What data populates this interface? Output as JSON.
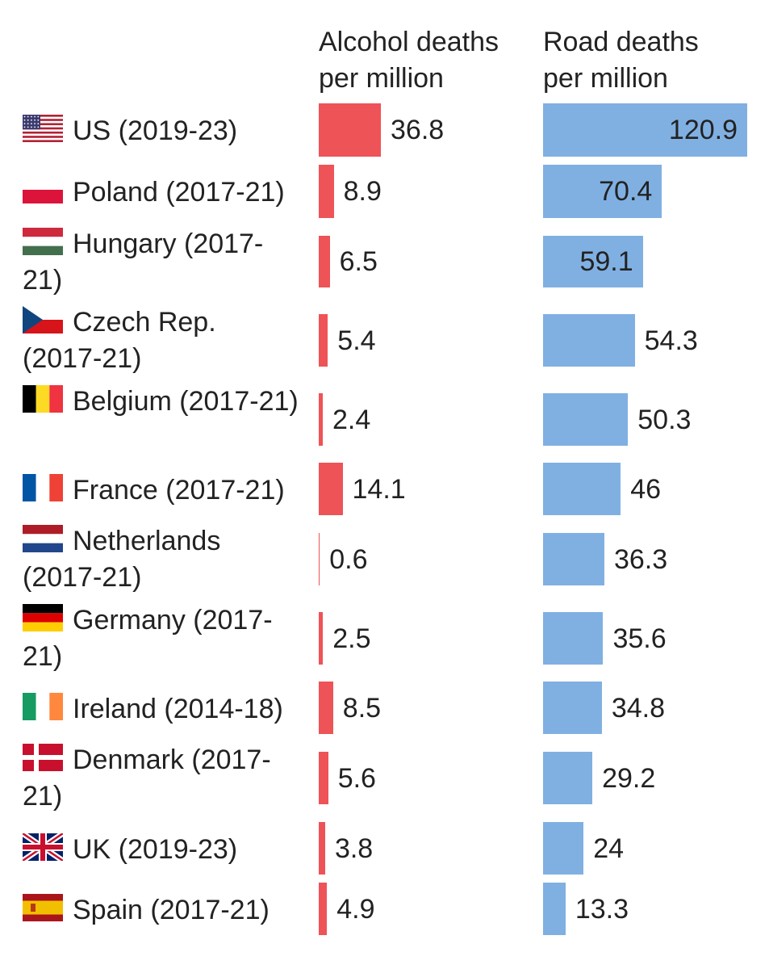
{
  "headers": {
    "alcohol": "Alcohol deaths per million",
    "road": "Road deaths per million"
  },
  "colors": {
    "alcohol": "#ee5357",
    "road": "#80b0e2"
  },
  "chart_data": {
    "type": "bar",
    "orientation": "horizontal",
    "categories": [
      "US (2019-23)",
      "Poland (2017-21)",
      "Hungary (2017-21)",
      "Czech Rep. (2017-21)",
      "Belgium (2017-21)",
      "France (2017-21)",
      "Netherlands (2017-21)",
      "Germany (2017-21)",
      "Ireland (2014-18)",
      "Denmark (2017-21)",
      "UK (2019-23)",
      "Spain (2017-21)"
    ],
    "series": [
      {
        "name": "Alcohol deaths per million",
        "values": [
          36.8,
          8.9,
          6.5,
          5.4,
          2.4,
          14.1,
          0.6,
          2.5,
          8.5,
          5.6,
          3.8,
          4.9
        ]
      },
      {
        "name": "Road deaths per million",
        "values": [
          120.9,
          70.4,
          59.1,
          54.3,
          50.3,
          46,
          36.3,
          35.6,
          34.8,
          29.2,
          24,
          13.3
        ]
      }
    ],
    "rows": [
      {
        "label": "US (2019-23)",
        "flag": "us-flag-icon",
        "alcohol": "36.8",
        "road": "120.9"
      },
      {
        "label": "Poland (2017-21)",
        "flag": "poland-flag-icon",
        "alcohol": "8.9",
        "road": "70.4"
      },
      {
        "label": "Hungary (2017-21)",
        "flag": "hungary-flag-icon",
        "alcohol": "6.5",
        "road": "59.1"
      },
      {
        "label": "Czech Rep. (2017-21)",
        "flag": "czech-flag-icon",
        "alcohol": "5.4",
        "road": "54.3"
      },
      {
        "label": "Belgium (2017-21)",
        "flag": "belgium-flag-icon",
        "alcohol": "2.4",
        "road": "50.3"
      },
      {
        "label": "France (2017-21)",
        "flag": "france-flag-icon",
        "alcohol": "14.1",
        "road": "46"
      },
      {
        "label": "Netherlands (2017-21)",
        "flag": "netherlands-flag-icon",
        "alcohol": "0.6",
        "road": "36.3"
      },
      {
        "label": "Germany (2017-21)",
        "flag": "germany-flag-icon",
        "alcohol": "2.5",
        "road": "35.6"
      },
      {
        "label": "Ireland (2014-18)",
        "flag": "ireland-flag-icon",
        "alcohol": "8.5",
        "road": "34.8"
      },
      {
        "label": "Denmark (2017-21)",
        "flag": "denmark-flag-icon",
        "alcohol": "5.6",
        "road": "29.2"
      },
      {
        "label": "UK (2019-23)",
        "flag": "uk-flag-icon",
        "alcohol": "3.8",
        "road": "24"
      },
      {
        "label": "Spain (2017-21)",
        "flag": "spain-flag-icon",
        "alcohol": "4.9",
        "road": "13.3"
      }
    ]
  }
}
